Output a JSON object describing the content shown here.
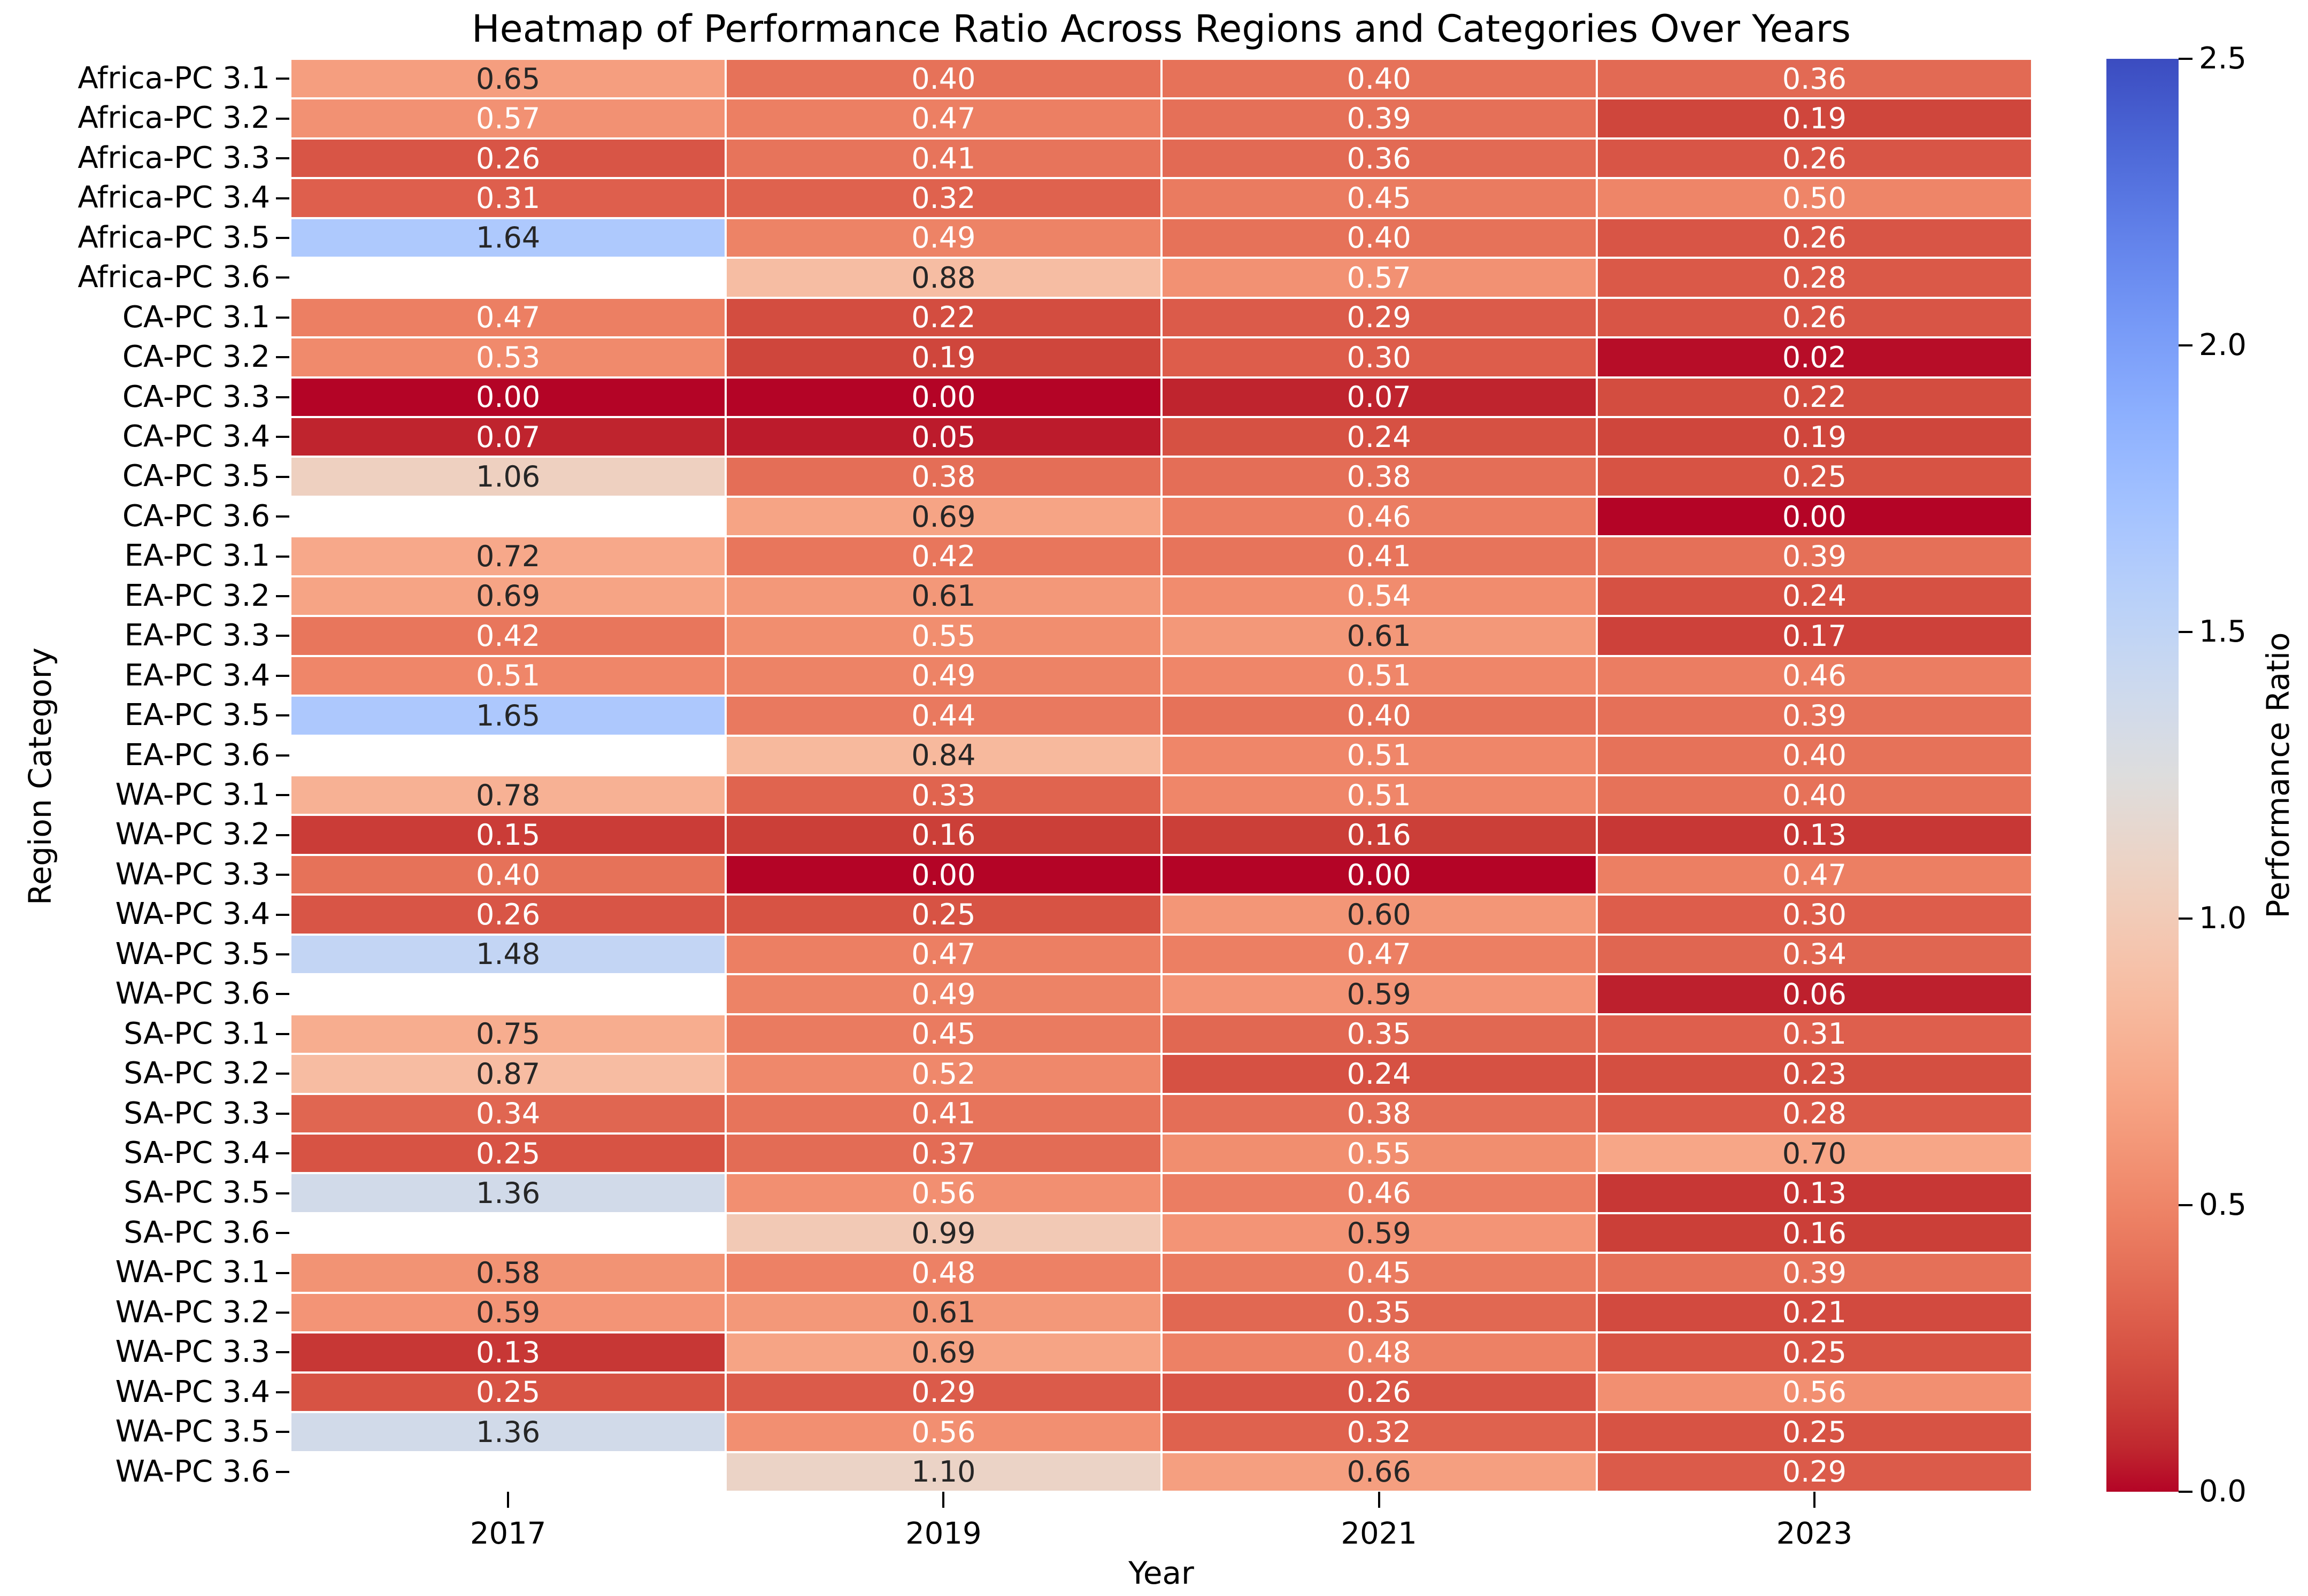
{
  "chart_data": {
    "type": "heatmap",
    "title": "Heatmap of Performance Ratio Across Regions and Categories Over Years",
    "xlabel": "Year",
    "ylabel": "Region Category",
    "x": [
      "2017",
      "2019",
      "2021",
      "2023"
    ],
    "rows": [
      {
        "label": "Africa-PC 3.1",
        "values": [
          0.65,
          0.4,
          0.4,
          0.36
        ]
      },
      {
        "label": "Africa-PC 3.2",
        "values": [
          0.57,
          0.47,
          0.39,
          0.19
        ]
      },
      {
        "label": "Africa-PC 3.3",
        "values": [
          0.26,
          0.41,
          0.36,
          0.26
        ]
      },
      {
        "label": "Africa-PC 3.4",
        "values": [
          0.31,
          0.32,
          0.45,
          0.5
        ]
      },
      {
        "label": "Africa-PC 3.5",
        "values": [
          1.64,
          0.49,
          0.4,
          0.26
        ]
      },
      {
        "label": "Africa-PC 3.6",
        "values": [
          null,
          0.88,
          0.57,
          0.28
        ]
      },
      {
        "label": "CA-PC 3.1",
        "values": [
          0.47,
          0.22,
          0.29,
          0.26
        ]
      },
      {
        "label": "CA-PC 3.2",
        "values": [
          0.53,
          0.19,
          0.3,
          0.02
        ]
      },
      {
        "label": "CA-PC 3.3",
        "values": [
          0.0,
          0.0,
          0.07,
          0.22
        ]
      },
      {
        "label": "CA-PC 3.4",
        "values": [
          0.07,
          0.05,
          0.24,
          0.19
        ]
      },
      {
        "label": "CA-PC 3.5",
        "values": [
          1.06,
          0.38,
          0.38,
          0.25
        ]
      },
      {
        "label": "CA-PC 3.6",
        "values": [
          null,
          0.69,
          0.46,
          0.0
        ]
      },
      {
        "label": "EA-PC 3.1",
        "values": [
          0.72,
          0.42,
          0.41,
          0.39
        ]
      },
      {
        "label": "EA-PC 3.2",
        "values": [
          0.69,
          0.61,
          0.54,
          0.24
        ]
      },
      {
        "label": "EA-PC 3.3",
        "values": [
          0.42,
          0.55,
          0.61,
          0.17
        ]
      },
      {
        "label": "EA-PC 3.4",
        "values": [
          0.51,
          0.49,
          0.51,
          0.46
        ]
      },
      {
        "label": "EA-PC 3.5",
        "values": [
          1.65,
          0.44,
          0.4,
          0.39
        ]
      },
      {
        "label": "EA-PC 3.6",
        "values": [
          null,
          0.84,
          0.51,
          0.4
        ]
      },
      {
        "label": "WA-PC 3.1",
        "values": [
          0.78,
          0.33,
          0.51,
          0.4
        ]
      },
      {
        "label": "WA-PC 3.2",
        "values": [
          0.15,
          0.16,
          0.16,
          0.13
        ]
      },
      {
        "label": "WA-PC 3.3",
        "values": [
          0.4,
          0.0,
          0.0,
          0.47
        ]
      },
      {
        "label": "WA-PC 3.4",
        "values": [
          0.26,
          0.25,
          0.6,
          0.3
        ]
      },
      {
        "label": "WA-PC 3.5",
        "values": [
          1.48,
          0.47,
          0.47,
          0.34
        ]
      },
      {
        "label": "WA-PC 3.6",
        "values": [
          null,
          0.49,
          0.59,
          0.06
        ]
      },
      {
        "label": "SA-PC 3.1",
        "values": [
          0.75,
          0.45,
          0.35,
          0.31
        ]
      },
      {
        "label": "SA-PC 3.2",
        "values": [
          0.87,
          0.52,
          0.24,
          0.23
        ]
      },
      {
        "label": "SA-PC 3.3",
        "values": [
          0.34,
          0.41,
          0.38,
          0.28
        ]
      },
      {
        "label": "SA-PC 3.4",
        "values": [
          0.25,
          0.37,
          0.55,
          0.7
        ]
      },
      {
        "label": "SA-PC 3.5",
        "values": [
          1.36,
          0.56,
          0.46,
          0.13
        ]
      },
      {
        "label": "SA-PC 3.6",
        "values": [
          null,
          0.99,
          0.59,
          0.16
        ]
      },
      {
        "label": "WA-PC 3.1",
        "values": [
          0.58,
          0.48,
          0.45,
          0.39
        ]
      },
      {
        "label": "WA-PC 3.2",
        "values": [
          0.59,
          0.61,
          0.35,
          0.21
        ]
      },
      {
        "label": "WA-PC 3.3",
        "values": [
          0.13,
          0.69,
          0.48,
          0.25
        ]
      },
      {
        "label": "WA-PC 3.4",
        "values": [
          0.25,
          0.29,
          0.26,
          0.56
        ]
      },
      {
        "label": "WA-PC 3.5",
        "values": [
          1.36,
          0.56,
          0.32,
          0.25
        ]
      },
      {
        "label": "WA-PC 3.6",
        "values": [
          null,
          1.1,
          0.66,
          0.29
        ]
      }
    ],
    "value_decimals": 2,
    "colorbar": {
      "label": "Performance Ratio",
      "tick_labels": [
        "0.0",
        "0.5",
        "1.0",
        "1.5",
        "2.0",
        "2.5"
      ],
      "tick_values": [
        0,
        0.5,
        1,
        1.5,
        2,
        2.5
      ]
    },
    "colormap": {
      "vmin": 0,
      "vmax": 2.5,
      "low_color": "#B40426",
      "mid_color": "#DDDDDD",
      "high_color": "#3B4CC0",
      "anchors": [
        "#3B4CC0",
        "#445ACC",
        "#4D68D7",
        "#5775E1",
        "#6282EA",
        "#6C8EF1",
        "#779AF7",
        "#82A5FB",
        "#8DB0FE",
        "#98B9FF",
        "#A3C2FF",
        "#AEC9FD",
        "#B8D0F9",
        "#C2D5F4",
        "#CCD9EE",
        "#D5DBE6",
        "#DDDDDD",
        "#E5D8D1",
        "#ECD3C5",
        "#F1CCB9",
        "#F5C4AD",
        "#F7BBA0",
        "#F7B194",
        "#F7A687",
        "#F49A7B",
        "#F18D6F",
        "#EC7F63",
        "#E57058",
        "#DE604D",
        "#D55042",
        "#CB3E38",
        "#C0282F",
        "#B40426"
      ]
    },
    "annotation_dark_text": "#262626",
    "annotation_light_text": "#ffffff",
    "gridline_color": "#ffffff",
    "layout": {
      "grid_on": false,
      "legend_position": "right-colorbar"
    }
  }
}
